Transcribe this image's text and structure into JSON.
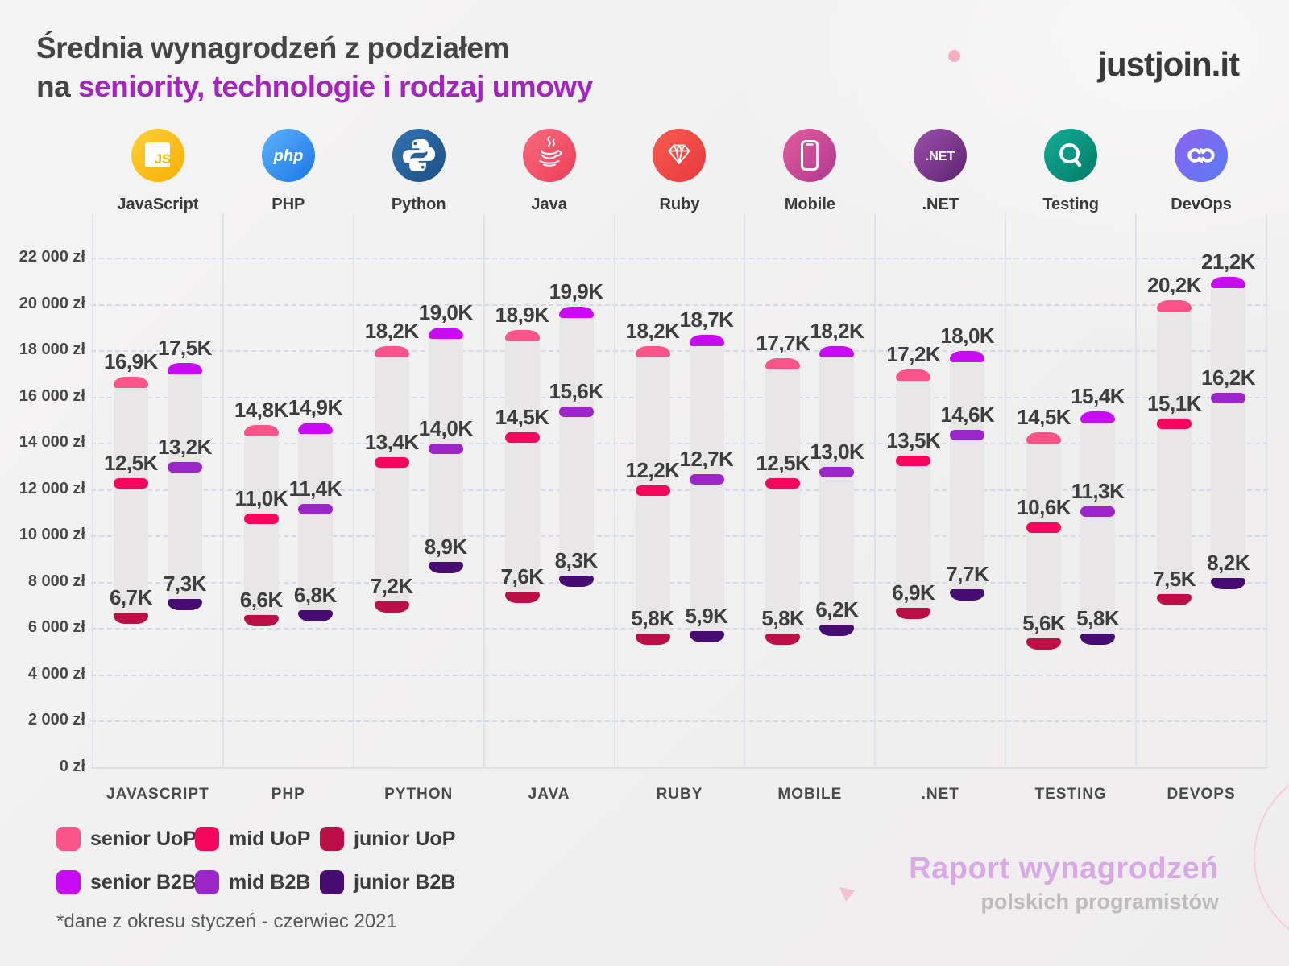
{
  "header": {
    "title_line1": "Średnia wynagrodzeń z podziałem",
    "title_line2_prefix": "na ",
    "title_line2_highlight": "seniority, technologie i rodzaj umowy",
    "logo": "justjoin.it"
  },
  "technologies": [
    {
      "id": "javascript",
      "label": "JavaScript",
      "axis_label": "JAVASCRIPT",
      "icon": "javascript-icon"
    },
    {
      "id": "php",
      "label": "PHP",
      "axis_label": "PHP",
      "icon": "php-icon"
    },
    {
      "id": "python",
      "label": "Python",
      "axis_label": "PYTHON",
      "icon": "python-icon"
    },
    {
      "id": "java",
      "label": "Java",
      "axis_label": "JAVA",
      "icon": "java-icon"
    },
    {
      "id": "ruby",
      "label": "Ruby",
      "axis_label": "RUBY",
      "icon": "ruby-icon"
    },
    {
      "id": "mobile",
      "label": "Mobile",
      "axis_label": "MOBILE",
      "icon": "mobile-icon"
    },
    {
      "id": "dotnet",
      "label": ".NET",
      "axis_label": ".NET",
      "icon": "dotnet-icon"
    },
    {
      "id": "testing",
      "label": "Testing",
      "axis_label": "TESTING",
      "icon": "testing-icon"
    },
    {
      "id": "devops",
      "label": "DevOps",
      "axis_label": "DEVOPS",
      "icon": "devops-icon"
    }
  ],
  "chart_data": {
    "type": "bar",
    "title": "Średnia wynagrodzeń z podziałem na seniority, technologie i rodzaj umowy",
    "categories": [
      "JavaScript",
      "PHP",
      "Python",
      "Java",
      "Ruby",
      "Mobile",
      ".NET",
      "Testing",
      "DevOps"
    ],
    "unit": "thousand PLN per month",
    "ylabel": "zł",
    "ylim": [
      0,
      22000
    ],
    "ytick_step": 2000,
    "ytick_suffix": " zł",
    "grid": "dashed-horizontal",
    "legend_position": "bottom-left",
    "bar_track_color": "#E8E6E7",
    "decimal_separator": ",",
    "value_label_suffix": "K",
    "series": [
      {
        "name": "senior UoP",
        "color": "#F9558A",
        "values": [
          16.9,
          14.8,
          18.2,
          18.9,
          18.2,
          17.7,
          17.2,
          14.5,
          20.2
        ]
      },
      {
        "name": "mid UoP",
        "color": "#F5065C",
        "values": [
          12.5,
          11.0,
          13.4,
          14.5,
          12.2,
          12.5,
          13.5,
          10.6,
          15.1
        ]
      },
      {
        "name": "junior UoP",
        "color": "#BC0E47",
        "values": [
          6.7,
          6.6,
          7.2,
          7.6,
          5.8,
          5.8,
          6.9,
          5.6,
          7.5
        ]
      },
      {
        "name": "senior B2B",
        "color": "#C80BF2",
        "values": [
          17.5,
          14.9,
          19.0,
          19.9,
          18.7,
          18.2,
          18.0,
          15.4,
          21.2
        ]
      },
      {
        "name": "mid B2B",
        "color": "#9B27C9",
        "values": [
          13.2,
          11.4,
          14.0,
          15.6,
          12.7,
          13.0,
          14.6,
          11.3,
          16.2
        ]
      },
      {
        "name": "junior B2B",
        "color": "#470C71",
        "values": [
          7.3,
          6.8,
          8.9,
          8.3,
          5.9,
          6.2,
          7.7,
          5.8,
          8.2
        ]
      }
    ]
  },
  "legend": {
    "rows": [
      [
        "senior UoP",
        "mid UoP",
        "junior UoP"
      ],
      [
        "senior B2B",
        "mid B2B",
        "junior B2B"
      ]
    ]
  },
  "footnote": "*dane z okresu styczeń - czerwiec 2021",
  "branding": {
    "line1": "Raport wynagrodzeń",
    "line2": "polskich programistów"
  }
}
